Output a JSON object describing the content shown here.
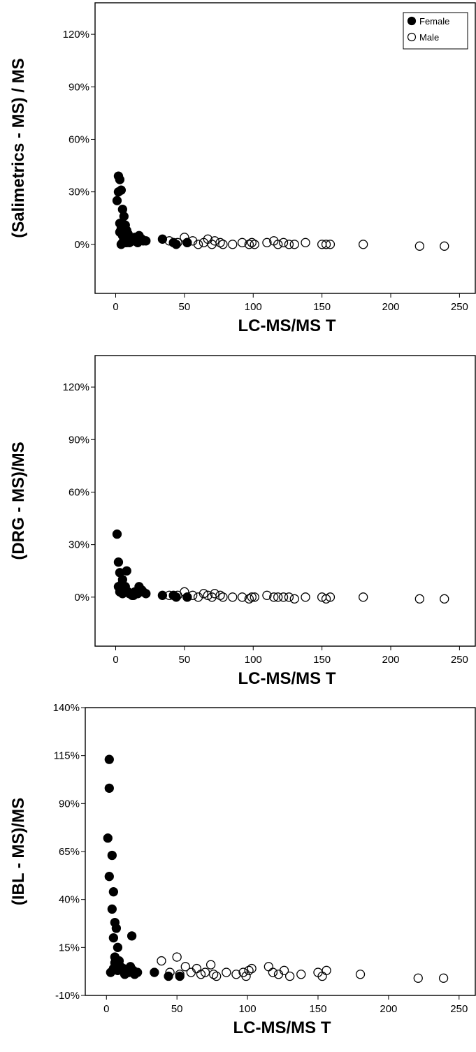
{
  "legend": [
    {
      "label": "Female",
      "marker": "filled-circle"
    },
    {
      "label": "Male",
      "marker": "open-circle"
    }
  ],
  "colors": {
    "marker": "#000000",
    "frame": "#000000",
    "background": "#ffffff"
  },
  "chart_data": [
    {
      "type": "scatter",
      "title": "",
      "xlabel": "LC-MS/MS T",
      "ylabel": "(Salimetrics - MS) / MS",
      "xlim": [
        -15,
        262
      ],
      "ylim": [
        -28,
        138
      ],
      "xticks": [
        0,
        50,
        100,
        150,
        200,
        250
      ],
      "yticks": [
        0,
        30,
        60,
        90,
        120
      ],
      "ytick_labels": [
        "0%",
        "30%",
        "60%",
        "90%",
        "120%"
      ],
      "grid": false,
      "legend_position": "top-right",
      "series": [
        {
          "name": "Female",
          "marker": "filled",
          "x": [
            1,
            2,
            3,
            2,
            4,
            5,
            3,
            6,
            4,
            7,
            5,
            8,
            6,
            9,
            7,
            10,
            8,
            12,
            14,
            17,
            19,
            22,
            3,
            5,
            6,
            8,
            10,
            13,
            16,
            20,
            34,
            42,
            44,
            52,
            4,
            7
          ],
          "y": [
            25,
            39,
            37,
            30,
            31,
            20,
            12,
            16,
            9,
            11,
            5,
            8,
            3,
            6,
            2,
            4,
            1,
            2,
            4,
            5,
            3,
            2,
            7,
            1,
            6,
            3,
            1,
            2,
            1,
            2,
            3,
            1,
            0,
            1,
            0,
            1
          ]
        },
        {
          "name": "Male",
          "marker": "open",
          "x": [
            39,
            45,
            50,
            52,
            56,
            60,
            64,
            67,
            70,
            72,
            76,
            78,
            85,
            92,
            97,
            99,
            101,
            110,
            115,
            118,
            122,
            126,
            130,
            138,
            150,
            153,
            156,
            180,
            221,
            239
          ],
          "y": [
            2,
            1,
            4,
            1,
            2,
            0,
            1,
            3,
            0,
            2,
            1,
            0,
            0,
            1,
            0,
            1,
            0,
            1,
            2,
            0,
            1,
            0,
            0,
            1,
            0,
            0,
            0,
            0,
            -1,
            -1
          ]
        }
      ]
    },
    {
      "type": "scatter",
      "title": "",
      "xlabel": "LC-MS/MS T",
      "ylabel": "(DRG - MS)/MS",
      "xlim": [
        -15,
        262
      ],
      "ylim": [
        -28,
        138
      ],
      "xticks": [
        0,
        50,
        100,
        150,
        200,
        250
      ],
      "yticks": [
        0,
        30,
        60,
        90,
        120
      ],
      "ytick_labels": [
        "0%",
        "30%",
        "60%",
        "90%",
        "120%"
      ],
      "grid": false,
      "legend_position": "none",
      "series": [
        {
          "name": "Female",
          "marker": "filled",
          "x": [
            1,
            2,
            3,
            2,
            4,
            5,
            3,
            6,
            4,
            7,
            8,
            6,
            9,
            10,
            12,
            14,
            17,
            19,
            22,
            5,
            13,
            16,
            20,
            34,
            42,
            44,
            52
          ],
          "y": [
            36,
            20,
            14,
            6,
            5,
            10,
            3,
            4,
            7,
            6,
            15,
            5,
            3,
            2,
            1,
            3,
            6,
            4,
            2,
            2,
            1,
            2,
            3,
            1,
            1,
            0,
            0
          ]
        },
        {
          "name": "Male",
          "marker": "open",
          "x": [
            39,
            45,
            50,
            52,
            56,
            60,
            64,
            67,
            70,
            72,
            76,
            78,
            85,
            92,
            97,
            99,
            101,
            110,
            115,
            118,
            122,
            126,
            130,
            138,
            150,
            153,
            156,
            180,
            221,
            239
          ],
          "y": [
            1,
            1,
            3,
            0,
            1,
            0,
            2,
            1,
            0,
            2,
            1,
            0,
            0,
            0,
            -1,
            0,
            0,
            1,
            0,
            0,
            0,
            0,
            -1,
            0,
            0,
            -1,
            0,
            0,
            -1,
            -1
          ]
        }
      ]
    },
    {
      "type": "scatter",
      "title": "",
      "xlabel": "LC-MS/MS T",
      "ylabel": "(IBL - MS)/MS",
      "xlim": [
        -15,
        262
      ],
      "ylim": [
        -10,
        140
      ],
      "xticks": [
        0,
        50,
        100,
        150,
        200,
        250
      ],
      "yticks": [
        -10,
        15,
        40,
        65,
        90,
        115,
        140
      ],
      "ytick_labels": [
        "-10%",
        "15%",
        "40%",
        "65%",
        "90%",
        "115%",
        "140%"
      ],
      "grid": false,
      "legend_position": "none",
      "series": [
        {
          "name": "Female",
          "marker": "filled",
          "x": [
            2,
            2,
            1,
            4,
            2,
            5,
            4,
            6,
            7,
            5,
            8,
            6,
            9,
            7,
            10,
            8,
            12,
            14,
            17,
            18,
            19,
            22,
            3,
            5,
            6,
            13,
            16,
            20,
            34,
            44,
            52
          ],
          "y": [
            113,
            98,
            72,
            63,
            52,
            44,
            35,
            28,
            25,
            20,
            15,
            10,
            8,
            6,
            5,
            3,
            4,
            2,
            5,
            21,
            3,
            2,
            2,
            4,
            7,
            1,
            2,
            1,
            2,
            0,
            0
          ]
        },
        {
          "name": "Male",
          "marker": "open",
          "x": [
            39,
            45,
            50,
            52,
            56,
            60,
            64,
            67,
            70,
            74,
            76,
            78,
            85,
            92,
            97,
            99,
            101,
            103,
            115,
            118,
            122,
            126,
            130,
            138,
            150,
            153,
            156,
            180,
            221,
            239
          ],
          "y": [
            8,
            2,
            10,
            1,
            5,
            2,
            4,
            1,
            2,
            6,
            1,
            0,
            2,
            1,
            2,
            0,
            3,
            4,
            5,
            2,
            1,
            3,
            0,
            1,
            2,
            0,
            3,
            1,
            -1,
            -1
          ]
        }
      ]
    }
  ]
}
